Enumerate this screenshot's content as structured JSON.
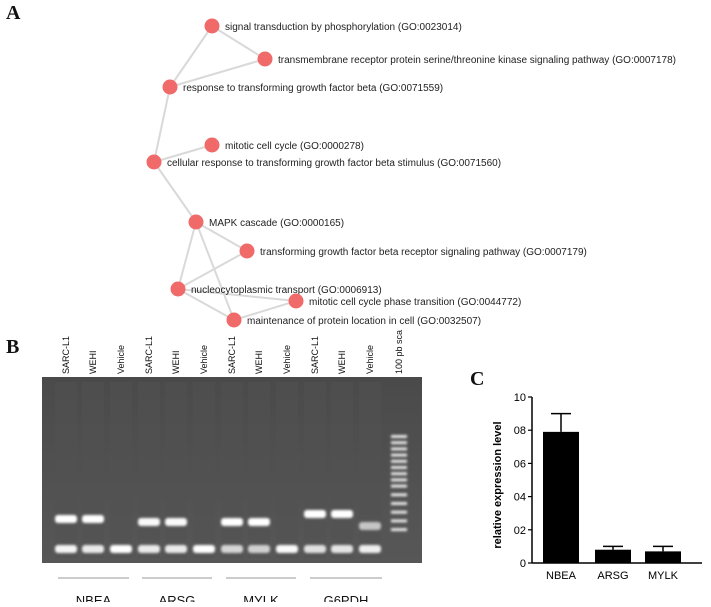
{
  "panels": {
    "a": "A",
    "b": "B",
    "c": "C"
  },
  "network": {
    "node_color": "#f06a6a",
    "edge_color": "#d9d9d9",
    "nodes": [
      {
        "id": "n1",
        "label": "signal transduction by phosphorylation (GO:0023014)"
      },
      {
        "id": "n2",
        "label": "transmembrane receptor protein serine/threonine kinase signaling pathway (GO:0007178)"
      },
      {
        "id": "n3",
        "label": "response to transforming growth factor beta (GO:0071559)"
      },
      {
        "id": "n4",
        "label": "mitotic cell cycle (GO:0000278)"
      },
      {
        "id": "n5",
        "label": "cellular response to transforming growth factor beta stimulus (GO:0071560)"
      },
      {
        "id": "n6",
        "label": "MAPK cascade (GO:0000165)"
      },
      {
        "id": "n7",
        "label": "transforming growth factor beta receptor signaling pathway (GO:0007179)"
      },
      {
        "id": "n8",
        "label": "nucleocytoplasmic transport (GO:0006913)"
      },
      {
        "id": "n9",
        "label": "mitotic cell cycle phase transition (GO:0044772)"
      },
      {
        "id": "n10",
        "label": "maintenance of protein location in cell (GO:0032507)"
      }
    ],
    "edges": [
      [
        "n1",
        "n2"
      ],
      [
        "n1",
        "n3"
      ],
      [
        "n2",
        "n3"
      ],
      [
        "n3",
        "n5"
      ],
      [
        "n4",
        "n5"
      ],
      [
        "n5",
        "n6"
      ],
      [
        "n6",
        "n7"
      ],
      [
        "n6",
        "n8"
      ],
      [
        "n6",
        "n10"
      ],
      [
        "n7",
        "n8"
      ],
      [
        "n8",
        "n9"
      ],
      [
        "n8",
        "n10"
      ],
      [
        "n9",
        "n10"
      ]
    ]
  },
  "gel": {
    "lane_labels": [
      "SARC-L1",
      "WEHI",
      "Vehicle",
      "SARC-L1",
      "WEHI",
      "Vehicle",
      "SARC-L1",
      "WEHI",
      "Vehicle",
      "SARC-L1",
      "WEHI",
      "Vehicle",
      "100 pb scale"
    ],
    "groups": [
      "NBEA",
      "ARSG",
      "MYLK",
      "G6PDH"
    ]
  },
  "chart_data": {
    "type": "bar",
    "categories": [
      "NBEA",
      "ARSG",
      "MYLK"
    ],
    "values": [
      7.9,
      0.8,
      0.7
    ],
    "errors": [
      1.1,
      0.2,
      0.3
    ],
    "ylabel": "relative expression level",
    "yticks": [
      "0",
      "02",
      "04",
      "06",
      "08",
      "10"
    ],
    "ylim": [
      0,
      10
    ],
    "bar_color": "#000000"
  }
}
